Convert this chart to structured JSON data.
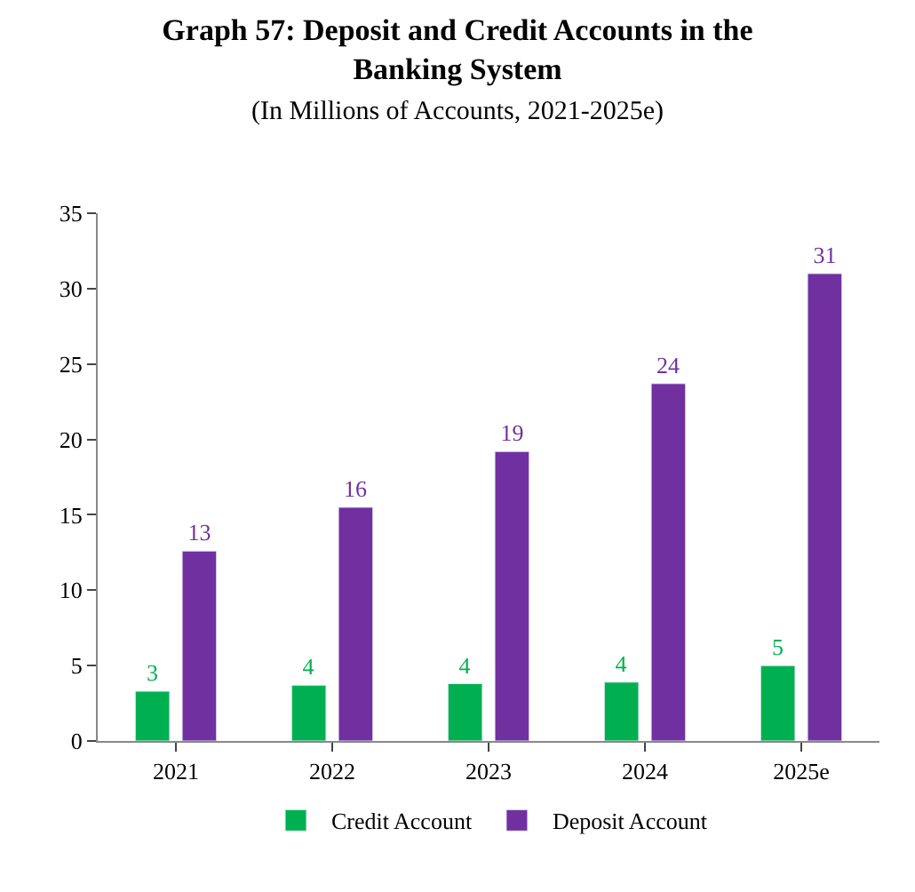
{
  "chart_data": {
    "type": "bar",
    "title": "Graph 57: Deposit and Credit Accounts in the Banking System",
    "subtitle": "(In Millions of Accounts, 2021-2025e)",
    "categories": [
      "2021",
      "2022",
      "2023",
      "2024",
      "2025e"
    ],
    "series": [
      {
        "name": "Credit Account",
        "color": "#00b050",
        "values": [
          3.3,
          3.7,
          3.8,
          3.9,
          5.0
        ],
        "value_labels": [
          "3",
          "4",
          "4",
          "4",
          "5"
        ]
      },
      {
        "name": "Deposit Account",
        "color": "#7030a0",
        "values": [
          12.6,
          15.5,
          19.2,
          23.7,
          31.0
        ],
        "value_labels": [
          "13",
          "16",
          "19",
          "24",
          "31"
        ]
      }
    ],
    "ylim": [
      0,
      35
    ],
    "yticks": [
      0,
      5,
      10,
      15,
      20,
      25,
      30,
      35
    ],
    "legend": "bottom"
  }
}
